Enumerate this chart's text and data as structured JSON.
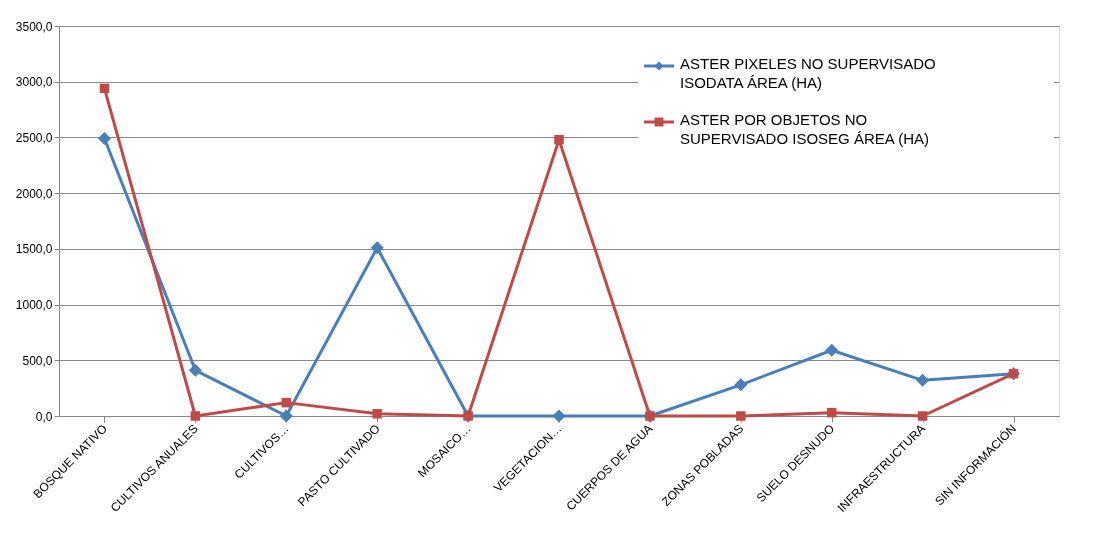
{
  "chart_data": {
    "type": "line",
    "categories": [
      "BOSQUE NATIVO",
      "CULTIVOS ANUALES",
      "CULTIVOS…",
      "PASTO CULTIVADO",
      "MOSAICO…",
      "VEGETACION…",
      "CUERPOS DE AGUA",
      "ZONAS POBLADAS",
      "SUELO DESNUDO",
      "INFRAESTRUCTURA",
      "SIN INFORMACIÓN"
    ],
    "series": [
      {
        "name": "ASTER PIXELES NO SUPERVISADO ISODATA ÁREA (HA)",
        "color": "#4a7ebb",
        "marker": "diamond",
        "values": [
          2490,
          410,
          0,
          1510,
          0,
          0,
          0,
          280,
          590,
          320,
          380
        ]
      },
      {
        "name": "ASTER POR OBJETOS NO SUPERVISADO ISOSEG ÁREA (HA)",
        "color": "#be4b48",
        "marker": "square",
        "values": [
          2940,
          0,
          120,
          20,
          0,
          2480,
          0,
          0,
          30,
          0,
          380
        ]
      }
    ],
    "ylim": [
      0,
      3500
    ],
    "yticks": [
      {
        "value": 0,
        "label": "0,0"
      },
      {
        "value": 500,
        "label": "500,0"
      },
      {
        "value": 1000,
        "label": "1000,0"
      },
      {
        "value": 1500,
        "label": "1500,0"
      },
      {
        "value": 2000,
        "label": "2000,0"
      },
      {
        "value": 2500,
        "label": "2500,0"
      },
      {
        "value": 3000,
        "label": "3000,0"
      },
      {
        "value": 3500,
        "label": "3500,0"
      }
    ],
    "grid": "y",
    "legend": "top right"
  }
}
